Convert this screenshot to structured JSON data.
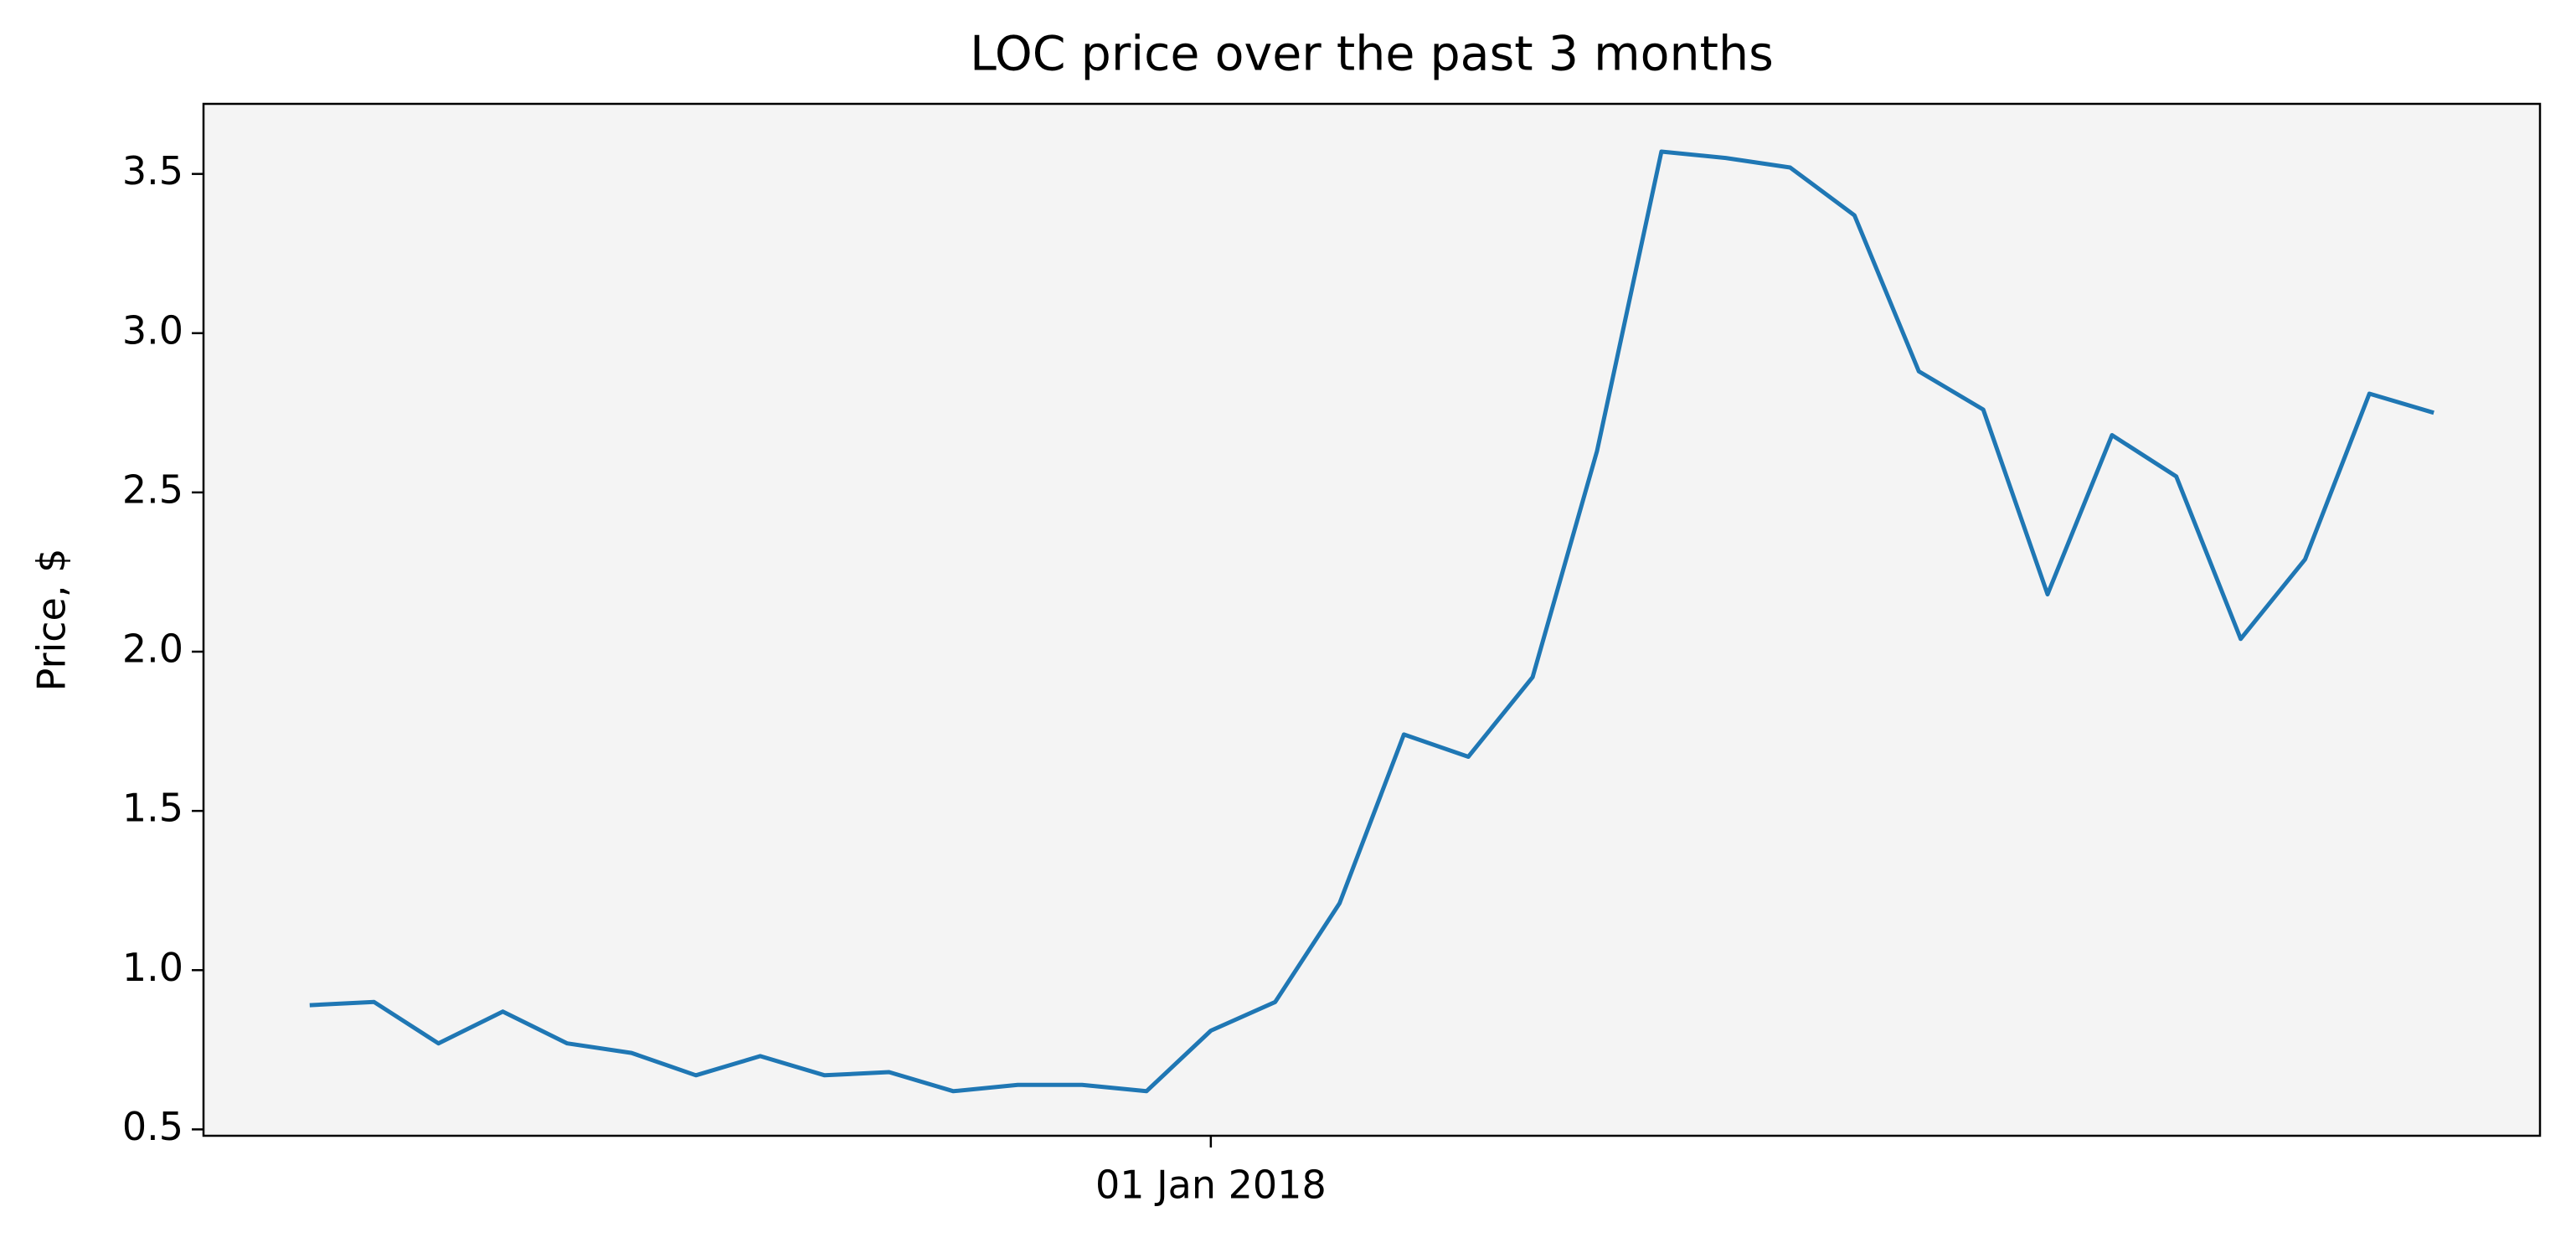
{
  "chart_data": {
    "type": "line",
    "title": "LOC price over the past 3 months",
    "y_label": "Price, $",
    "categories": [
      null,
      null,
      null,
      null,
      null,
      null,
      null,
      null,
      null,
      null,
      null,
      null,
      null,
      null,
      "01 Jan 2018",
      null,
      null,
      null,
      null,
      null,
      null,
      null,
      null,
      null,
      null,
      null,
      null,
      null,
      null,
      null,
      null,
      null,
      null,
      null
    ],
    "values": [
      0.89,
      0.9,
      0.77,
      0.87,
      0.77,
      0.74,
      0.67,
      0.73,
      0.67,
      0.68,
      0.62,
      0.64,
      0.64,
      0.62,
      0.81,
      0.9,
      1.21,
      1.74,
      1.67,
      1.92,
      2.63,
      3.57,
      3.55,
      3.52,
      3.37,
      2.88,
      2.76,
      2.18,
      2.68,
      2.55,
      2.04,
      2.29,
      2.81,
      2.75
    ],
    "color": "#1f77b4",
    "background": "#f4f4f4",
    "ylim": [
      0.48,
      3.72
    ],
    "yticks": [
      0.5,
      {
        "value": 1,
        "label": "1.0"
      },
      1.5,
      {
        "value": 2,
        "label": "2.0"
      },
      2.5,
      {
        "value": 3,
        "label": "3.0"
      },
      3.5
    ],
    "grid": false
  }
}
